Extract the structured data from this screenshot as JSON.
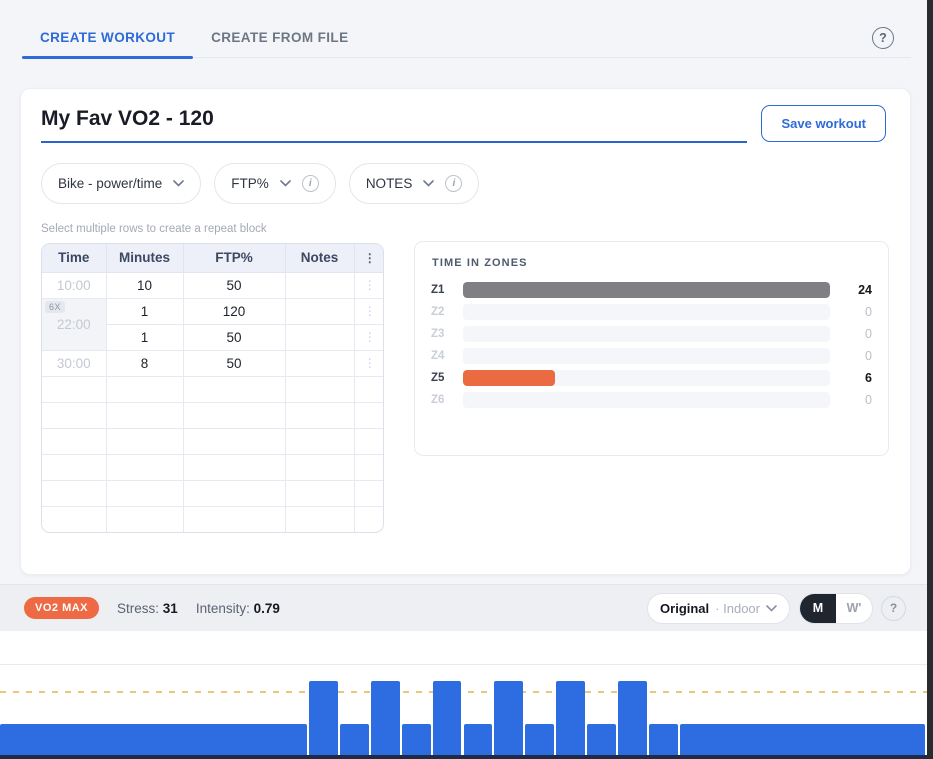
{
  "tabs": {
    "create_workout": "CREATE WORKOUT",
    "create_from_file": "CREATE FROM FILE"
  },
  "icons": {
    "kebab": "⋮",
    "question": "?",
    "info": "i",
    "dot": "·"
  },
  "workout": {
    "title": "My Fav VO2 - 120",
    "save_button": "Save workout",
    "type_select": "Bike - power/time",
    "target_select": "FTP%",
    "notes_select": "NOTES",
    "hint": "Select multiple rows to create a repeat block"
  },
  "table": {
    "headers": [
      "Time",
      "Minutes",
      "FTP%",
      "Notes"
    ],
    "rows": [
      {
        "time": "10:00",
        "minutes": "10",
        "ftp": "50",
        "notes": ""
      },
      {
        "time": "22:00",
        "repeat_badge": "6X",
        "sub": [
          {
            "minutes": "1",
            "ftp": "120",
            "notes": ""
          },
          {
            "minutes": "1",
            "ftp": "50",
            "notes": ""
          }
        ]
      },
      {
        "time": "30:00",
        "minutes": "8",
        "ftp": "50",
        "notes": ""
      }
    ],
    "empty_row_count": 6
  },
  "zones_panel": {
    "title": "TIME IN ZONES"
  },
  "status_bar": {
    "badge": "VO2 MAX",
    "stress_label": "Stress:",
    "stress_value": "31",
    "intensity_label": "Intensity:",
    "intensity_value": "0.79",
    "view_select": {
      "primary": "Original",
      "separator": "·",
      "secondary": "Indoor"
    },
    "toggle": {
      "m": "M",
      "w": "W'"
    }
  },
  "colors": {
    "accent_blue": "#2e6bd8",
    "bar_blue": "#2e6ce2",
    "orange": "#ed6a44",
    "zone_gray": "#808084",
    "threshold_dashed": "#e9c87c",
    "axis_dark": "#1d2b45"
  },
  "chart_data": [
    {
      "type": "bar",
      "orientation": "horizontal",
      "title": "TIME IN ZONES",
      "categories": [
        "Z1",
        "Z2",
        "Z3",
        "Z4",
        "Z5",
        "Z6"
      ],
      "values": [
        24,
        0,
        0,
        0,
        6,
        0
      ],
      "unit": "minutes",
      "xlim": [
        0,
        24
      ],
      "bar_colors": [
        "#808084",
        null,
        null,
        null,
        "#ea6a41",
        null
      ],
      "legend": "none",
      "grid": false
    },
    {
      "type": "bar",
      "title": "Workout profile",
      "x_unit": "minutes",
      "y_unit": "FTP %",
      "total_minutes": 30,
      "ylim": [
        0,
        130
      ],
      "threshold_pct": 100,
      "bar_color": "#2e6ce2",
      "threshold_color": "#e9c87c",
      "segments": [
        {
          "minutes": 10,
          "ftp_pct": 50
        },
        {
          "minutes": 1,
          "ftp_pct": 120
        },
        {
          "minutes": 1,
          "ftp_pct": 50
        },
        {
          "minutes": 1,
          "ftp_pct": 120
        },
        {
          "minutes": 1,
          "ftp_pct": 50
        },
        {
          "minutes": 1,
          "ftp_pct": 120
        },
        {
          "minutes": 1,
          "ftp_pct": 50
        },
        {
          "minutes": 1,
          "ftp_pct": 120
        },
        {
          "minutes": 1,
          "ftp_pct": 50
        },
        {
          "minutes": 1,
          "ftp_pct": 120
        },
        {
          "minutes": 1,
          "ftp_pct": 50
        },
        {
          "minutes": 1,
          "ftp_pct": 120
        },
        {
          "minutes": 1,
          "ftp_pct": 50
        },
        {
          "minutes": 8,
          "ftp_pct": 50
        }
      ]
    }
  ]
}
